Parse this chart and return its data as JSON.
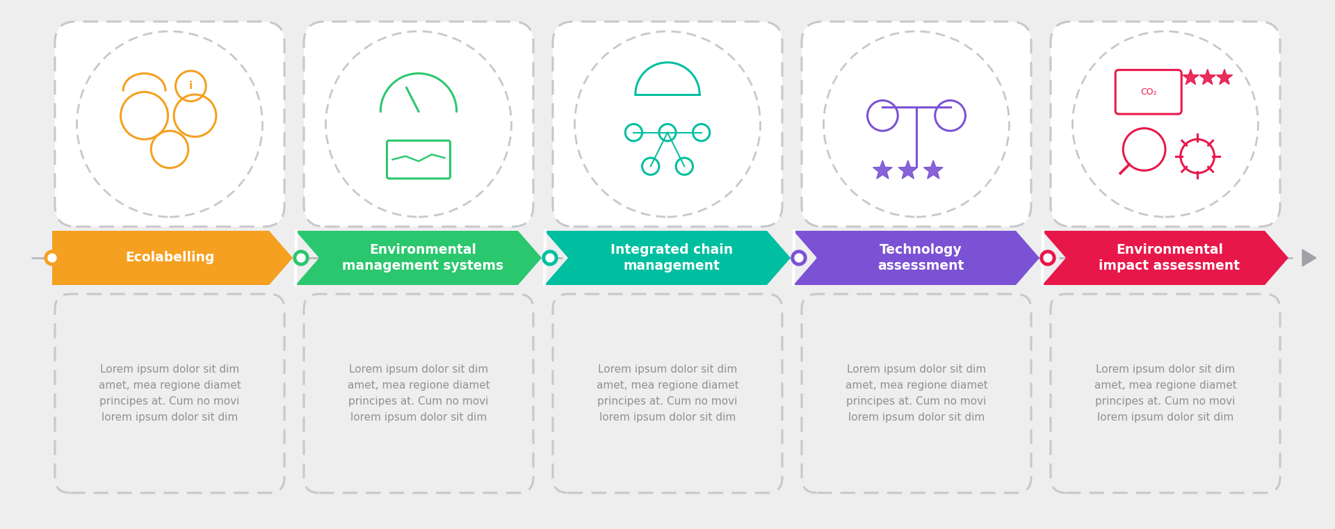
{
  "bg_color": "#eeeeef",
  "steps": [
    {
      "title": "Ecolabelling",
      "color": "#f5a020",
      "dot_color": "#f5a020",
      "icon_color": "#f5a020"
    },
    {
      "title": "Environmental\nmanagement systems",
      "color": "#2bc76e",
      "dot_color": "#2bc76e",
      "icon_color": "#2bc76e"
    },
    {
      "title": "Integrated chain\nmanagement",
      "color": "#00bfa0",
      "dot_color": "#00bfa0",
      "icon_color": "#00bfa0"
    },
    {
      "title": "Technology\nassessment",
      "color": "#7b52d3",
      "dot_color": "#7b52d3",
      "icon_color": "#7b52d3"
    },
    {
      "title": "Environmental\nimpact assessment",
      "color": "#e8174a",
      "dot_color": "#e8174a",
      "icon_color": "#e8174a"
    }
  ],
  "lorem_text": "Lorem ipsum dolor sit dim\namet, mea regione diamet\nprincipes at. Cum no movi\nlorem ipsum dolor sit dim",
  "white": "#ffffff",
  "text_color": "#909090",
  "dashed_border_color": "#c8c8cc",
  "line_color": "#b8b8c0",
  "triangle_color": "#a0a0a8"
}
